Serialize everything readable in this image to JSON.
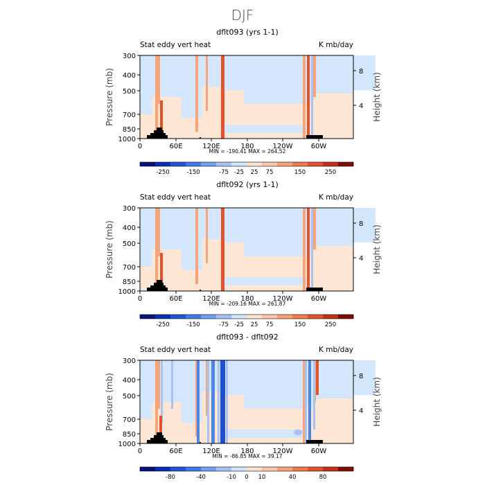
{
  "title": "DJF",
  "chart_data": [
    {
      "type": "heatmap",
      "title": "dflt093 (yrs 1-1)",
      "left_label": "Stat eddy vert heat",
      "right_label": "K mb/day",
      "ylabel": "Pressure (mb)",
      "y2label": "Height (km)",
      "yticks": [
        "300",
        "400",
        "500",
        "700",
        "850",
        "1000"
      ],
      "y2ticks": [
        "8",
        "4"
      ],
      "xticks": [
        "0",
        "60E",
        "120E",
        "180",
        "120W",
        "60W"
      ],
      "stats": "MIN = -190.41   MAX = 264.52",
      "colorbar_labels": [
        "-250",
        "-150",
        "-75",
        "-25",
        "25",
        "75",
        "150",
        "250"
      ]
    },
    {
      "type": "heatmap",
      "title": "dflt092 (yrs 1-1)",
      "left_label": "Stat eddy vert heat",
      "right_label": "K mb/day",
      "ylabel": "Pressure (mb)",
      "y2label": "Height (km)",
      "yticks": [
        "300",
        "400",
        "500",
        "700",
        "850",
        "1000"
      ],
      "y2ticks": [
        "8",
        "4"
      ],
      "xticks": [
        "0",
        "60E",
        "120E",
        "180",
        "120W",
        "60W"
      ],
      "stats": "MIN = -209.16   MAX = 261.87",
      "colorbar_labels": [
        "-250",
        "-150",
        "-75",
        "-25",
        "25",
        "75",
        "150",
        "250"
      ]
    },
    {
      "type": "heatmap",
      "title": "dflt093 - dflt092",
      "left_label": "Stat eddy vert heat",
      "right_label": "K mb/day",
      "ylabel": "Pressure (mb)",
      "y2label": "Height (km)",
      "yticks": [
        "300",
        "400",
        "500",
        "700",
        "850",
        "1000"
      ],
      "y2ticks": [
        "8",
        "4"
      ],
      "xticks": [
        "0",
        "60E",
        "120E",
        "180",
        "120W",
        "60W"
      ],
      "stats": "MIN = -86.85   MAX =   39.17",
      "colorbar_labels": [
        "-80",
        "-40",
        "-10",
        "0",
        "10",
        "40",
        "80"
      ]
    }
  ],
  "colors": {
    "colorbar": [
      "#08127a",
      "#0a2fb0",
      "#1f55d6",
      "#3f7be6",
      "#6f9ff0",
      "#a5c4f5",
      "#d2e5fb",
      "#fde4d2",
      "#fbc7aa",
      "#f7a27a",
      "#ef7b4e",
      "#e2532b",
      "#c0301a",
      "#7e0d08"
    ],
    "bg_field": "#fde6d4",
    "light_blue": "#d4e6fb",
    "mid_blue": "#a6c3f4",
    "strong_blue": "#4e84e6",
    "deep_blue": "#1e4fcf",
    "red": "#e2532b",
    "orange": "#f6a57a",
    "topo": "#000000"
  }
}
